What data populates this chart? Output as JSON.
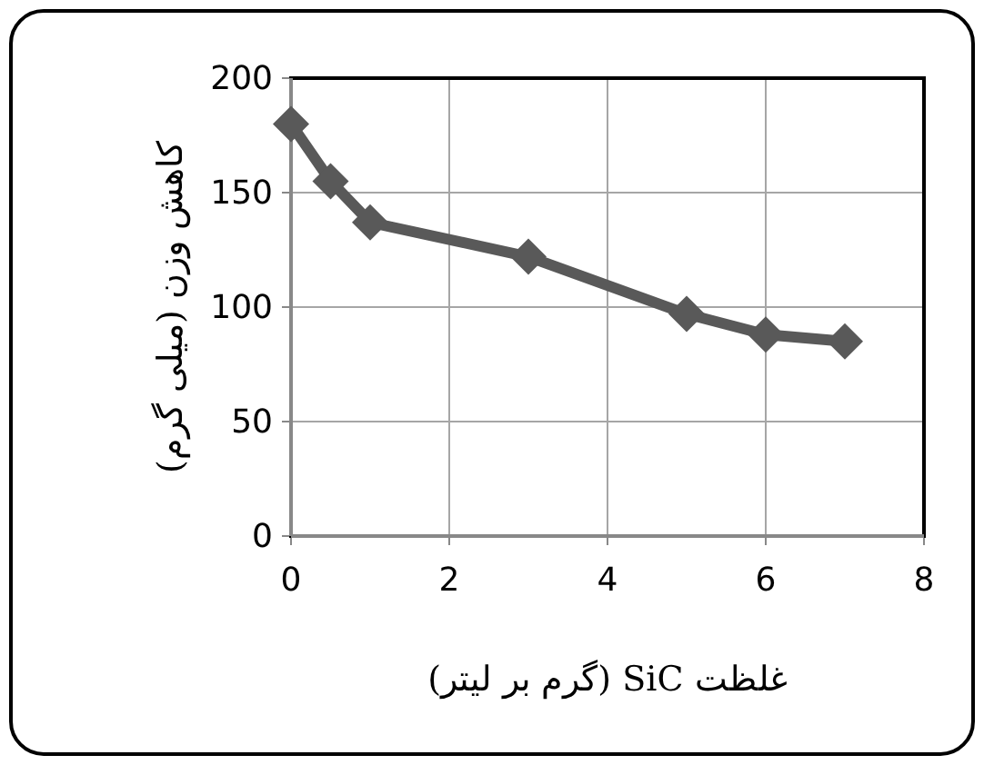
{
  "chart_data": {
    "type": "line",
    "xlabel": "غلظت SiC (گرم بر لیتر)",
    "ylabel": "کاهش وزن (میلی گرم)",
    "x": [
      0,
      0.5,
      1,
      3,
      5,
      6,
      7
    ],
    "series": [
      {
        "color": "#595959",
        "values": [
          180,
          155,
          137,
          122,
          97,
          88,
          85
        ]
      }
    ],
    "xlim": [
      0,
      8
    ],
    "ylim": [
      0,
      200
    ],
    "xticks": [
      0,
      2,
      4,
      6,
      8
    ],
    "yticks": [
      0,
      50,
      100,
      150,
      200
    ],
    "grid": true,
    "marker": "diamond",
    "line_style": "solid"
  }
}
